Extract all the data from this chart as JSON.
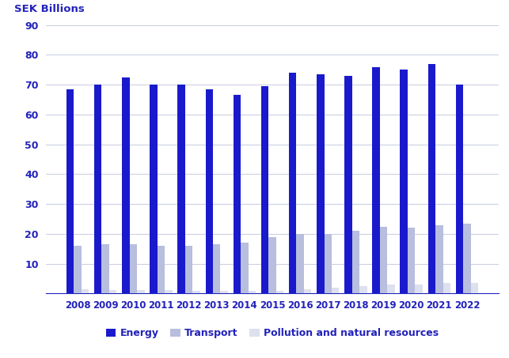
{
  "years": [
    2008,
    2009,
    2010,
    2011,
    2012,
    2013,
    2014,
    2015,
    2016,
    2017,
    2018,
    2019,
    2020,
    2021,
    2022
  ],
  "energy": [
    68.5,
    70.0,
    72.5,
    70.0,
    70.0,
    68.5,
    66.5,
    69.5,
    74.0,
    73.5,
    73.0,
    76.0,
    75.0,
    77.0,
    70.0
  ],
  "transport": [
    16.0,
    16.5,
    16.5,
    16.0,
    16.0,
    16.5,
    17.0,
    19.0,
    20.0,
    20.0,
    21.0,
    22.5,
    22.0,
    23.0,
    23.5
  ],
  "pollution": [
    1.5,
    1.2,
    1.2,
    1.2,
    1.0,
    1.0,
    1.0,
    1.0,
    1.5,
    2.0,
    2.5,
    3.0,
    3.0,
    3.5,
    3.5
  ],
  "energy_color": "#1a1acc",
  "transport_color": "#b8bede",
  "pollution_color": "#dde0ee",
  "ylabel_text": "SEK Billions",
  "ylim": [
    0,
    90
  ],
  "yticks": [
    0,
    10,
    20,
    30,
    40,
    50,
    60,
    70,
    80,
    90
  ],
  "background_color": "#ffffff",
  "grid_color": "#c8cce0",
  "axis_color": "#2222bb",
  "legend_labels": [
    "Energy",
    "Transport",
    "Pollution and natural resources"
  ],
  "bar_width": 0.27
}
